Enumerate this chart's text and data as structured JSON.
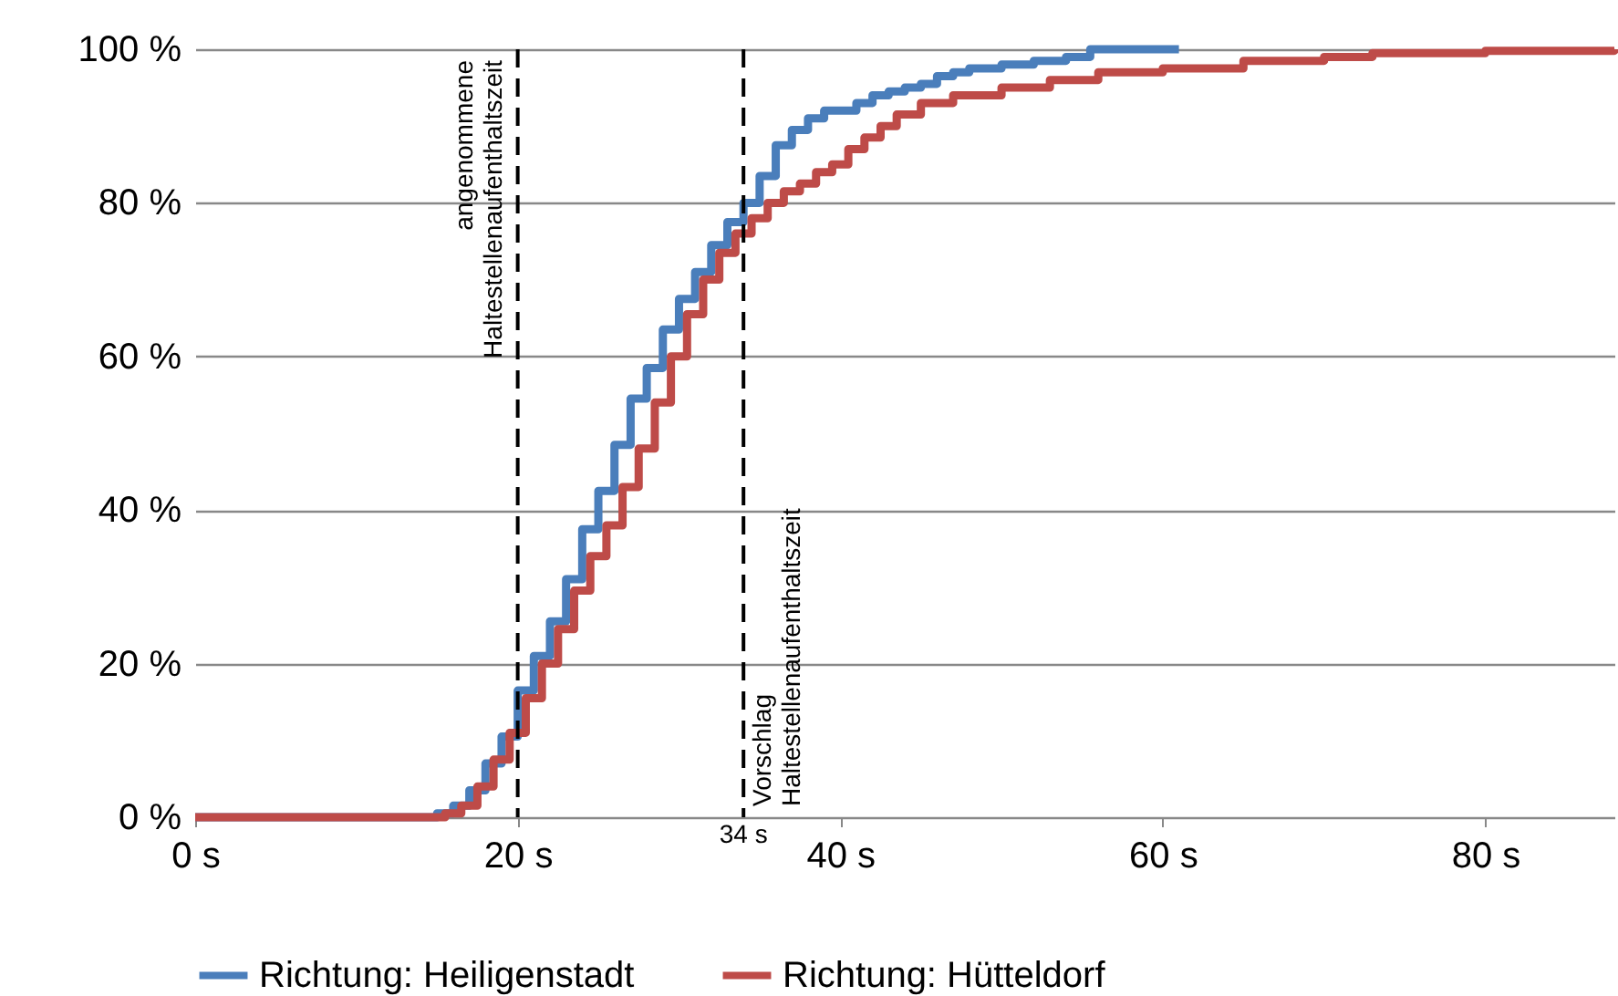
{
  "chart_data": {
    "type": "step",
    "xlim": [
      0,
      88
    ],
    "xticks": [
      {
        "value": 0,
        "label": "0 s"
      },
      {
        "value": 20,
        "label": "20 s"
      },
      {
        "value": 40,
        "label": "40 s"
      },
      {
        "value": 60,
        "label": "60 s"
      },
      {
        "value": 80,
        "label": "80 s"
      }
    ],
    "ylim": [
      0,
      100
    ],
    "yticks": [
      {
        "value": 0,
        "label": "0 %"
      },
      {
        "value": 20,
        "label": "20 %"
      },
      {
        "value": 40,
        "label": "40 %"
      },
      {
        "value": 60,
        "label": "60 %"
      },
      {
        "value": 80,
        "label": "80 %"
      },
      {
        "value": 100,
        "label": "100 %"
      }
    ],
    "grid": "y",
    "legend": "bottom",
    "line_style": "solid",
    "marker": "none",
    "series": [
      {
        "name": "Richtung: Heiligenstadt",
        "color": "#4a7ebb",
        "x": [
          0,
          14,
          15,
          16,
          17,
          18,
          19,
          20,
          21,
          22,
          23,
          24,
          25,
          26,
          27,
          28,
          29,
          30,
          31,
          32,
          33,
          34,
          35,
          36,
          37,
          38,
          39,
          40,
          41,
          42,
          43,
          44,
          45,
          46,
          47,
          48,
          50,
          52,
          54,
          55.5,
          61
        ],
        "values": [
          0,
          0,
          0.5,
          1.5,
          3.5,
          7,
          10.5,
          16.5,
          21,
          25.5,
          31,
          37.5,
          42.5,
          48.5,
          54.5,
          58.5,
          63.5,
          67.5,
          71,
          74.5,
          77.5,
          80,
          83.5,
          87.5,
          89.5,
          91,
          92,
          92,
          93,
          94,
          94.5,
          95,
          95.5,
          96.5,
          97,
          97.5,
          98,
          98.5,
          99,
          100,
          100
        ]
      },
      {
        "name": "Richtung: Hütteldorf",
        "color": "#be4b48",
        "x": [
          0,
          14.5,
          15.5,
          16.5,
          17.5,
          18.5,
          19.5,
          20.5,
          21.5,
          22.5,
          23.5,
          24.5,
          25.5,
          26.5,
          27.5,
          28.5,
          29.5,
          30.5,
          31.5,
          32.5,
          33.5,
          34.5,
          35.5,
          36.5,
          37.5,
          38.5,
          39.5,
          40.5,
          41.5,
          42.5,
          43.5,
          45,
          47,
          50,
          53,
          56,
          60,
          65,
          70,
          73,
          80,
          88
        ],
        "values": [
          0,
          0,
          0.5,
          1.5,
          4,
          7.5,
          11,
          15.5,
          20,
          24.5,
          29.5,
          34,
          38,
          43,
          48,
          54,
          60,
          65.5,
          70,
          73.5,
          76,
          78,
          80,
          81.5,
          82.5,
          84,
          85,
          87,
          88.5,
          90,
          91.5,
          93,
          94,
          95,
          96,
          97,
          97.5,
          98.5,
          99,
          99.5,
          99.8,
          100
        ]
      }
    ],
    "ref_lines": [
      {
        "axis": "x",
        "value": 20,
        "label": "angenommene\nHaltestellenaufenthaltszeit",
        "color": "#000000",
        "line_style": "dashed"
      },
      {
        "axis": "x",
        "value": 34,
        "label": "Vorschlag\nHaltestellenaufenthaltszeit",
        "color": "#000000",
        "line_style": "dashed"
      }
    ],
    "annotations": [
      {
        "text": "34 s",
        "x": 34,
        "y": 0
      }
    ]
  }
}
